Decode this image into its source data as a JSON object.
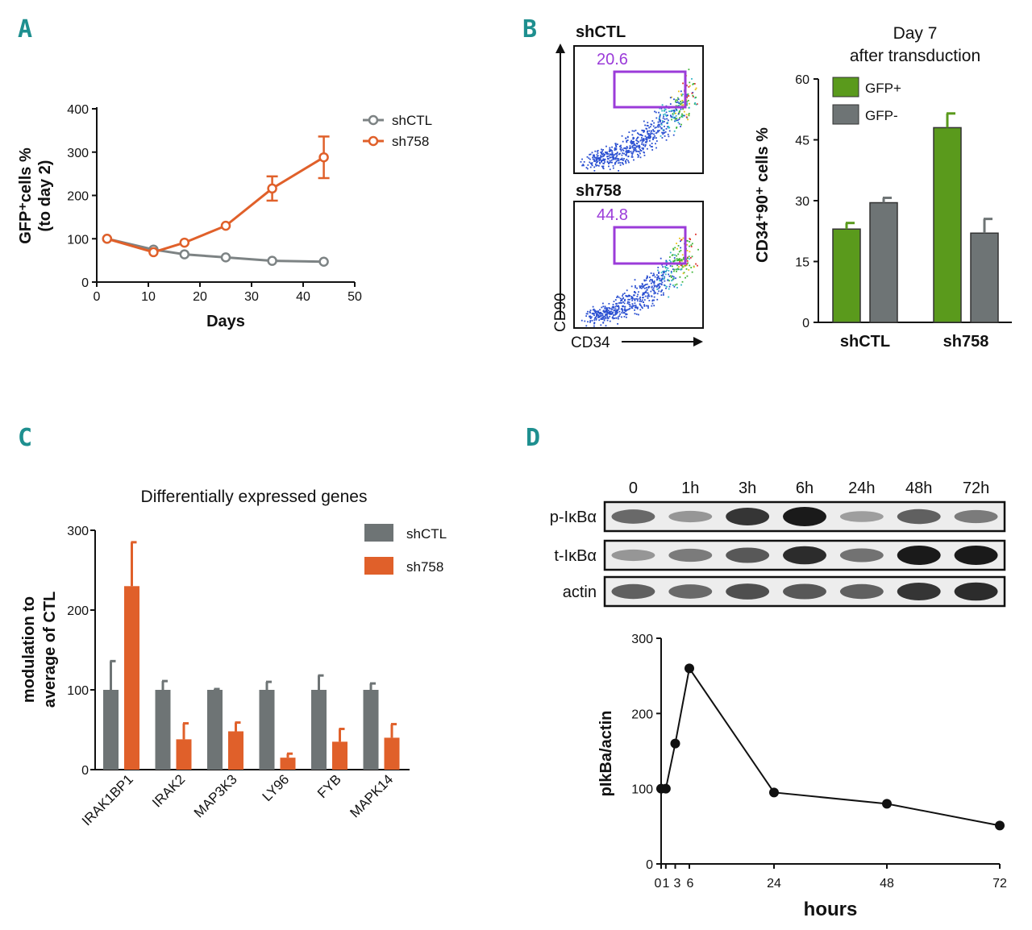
{
  "panels": {
    "A": "A",
    "B": "B",
    "C": "C",
    "D": "D"
  },
  "colors": {
    "teal": "#1e8f8f",
    "orange": "#e0602a",
    "gray": "#6e7475",
    "green": "#5a9a1c",
    "purple": "#9b3bd9"
  },
  "chart_data": [
    {
      "id": "A",
      "type": "line",
      "xlabel": "Days",
      "ylabel_line1": "GFP⁺cells %",
      "ylabel_line2": "(to day 2)",
      "xlim": [
        0,
        50
      ],
      "ylim": [
        0,
        400
      ],
      "xticks": [
        0,
        10,
        20,
        30,
        40,
        50
      ],
      "yticks": [
        0,
        100,
        200,
        300,
        400
      ],
      "series": [
        {
          "name": "shCTL",
          "color": "#7d8384",
          "x": [
            2,
            11,
            17,
            25,
            34,
            44
          ],
          "y": [
            100,
            75,
            64,
            57,
            49,
            47
          ],
          "err": [
            0,
            0,
            0,
            0,
            0,
            0
          ]
        },
        {
          "name": "sh758",
          "color": "#e0602a",
          "x": [
            2,
            11,
            17,
            25,
            34,
            44
          ],
          "y": [
            100,
            69,
            91,
            130,
            216,
            288
          ],
          "err": [
            0,
            0,
            0,
            0,
            28,
            48
          ]
        }
      ]
    },
    {
      "id": "B-flow",
      "type": "scatter",
      "xlabel": "CD34",
      "ylabel": "CD90",
      "plots": [
        {
          "label": "shCTL",
          "gate_value": "20.6"
        },
        {
          "label": "sh758",
          "gate_value": "44.8"
        }
      ]
    },
    {
      "id": "B",
      "type": "bar",
      "title_line1": "Day 7",
      "title_line2": "after transduction",
      "ylabel": "CD34⁺90⁺ cells %",
      "categories": [
        "shCTL",
        "sh758"
      ],
      "ylim": [
        0,
        60
      ],
      "yticks": [
        0,
        15,
        30,
        45,
        60
      ],
      "series": [
        {
          "name": "GFP+",
          "color": "#5a9a1c",
          "values": [
            23,
            48
          ],
          "err": [
            1.5,
            3.5
          ]
        },
        {
          "name": "GFP-",
          "color": "#6e7475",
          "values": [
            29.5,
            22
          ],
          "err": [
            1.2,
            3.5
          ]
        }
      ]
    },
    {
      "id": "C",
      "type": "bar",
      "title": "Differentially expressed genes",
      "ylabel_line1": "modulation to",
      "ylabel_line2": "average of CTL",
      "categories": [
        "IRAK1BP1",
        "IRAK2",
        "MAP3K3",
        "LY96",
        "FYB",
        "MAPK14"
      ],
      "ylim": [
        0,
        300
      ],
      "yticks": [
        0,
        100,
        200,
        300
      ],
      "series": [
        {
          "name": "shCTL",
          "color": "#6e7475",
          "values": [
            100,
            100,
            100,
            100,
            100,
            100
          ],
          "err": [
            36,
            11,
            1,
            10,
            18,
            8
          ]
        },
        {
          "name": "sh758",
          "color": "#e0602a",
          "values": [
            230,
            38,
            48,
            15,
            35,
            40
          ],
          "err": [
            55,
            20,
            11,
            5,
            16,
            17
          ]
        }
      ]
    },
    {
      "id": "D",
      "type": "line",
      "xlabel": "hours",
      "ylabel": "pIkBa/actin",
      "xlim": [
        0,
        72
      ],
      "ylim": [
        0,
        300
      ],
      "xticks": [
        0,
        1,
        3,
        6,
        24,
        48,
        72
      ],
      "yticks": [
        0,
        100,
        200,
        300
      ],
      "series": [
        {
          "name": "pIkBa/actin",
          "color": "#111111",
          "x": [
            0,
            1,
            3,
            6,
            24,
            48,
            72
          ],
          "y": [
            100,
            100,
            160,
            260,
            95,
            80,
            51
          ]
        }
      ]
    }
  ],
  "blot": {
    "timepoints": [
      "0",
      "1h",
      "3h",
      "6h",
      "24h",
      "48h",
      "72h"
    ],
    "rows": [
      {
        "label": "p-IκBα",
        "intensity": [
          0.55,
          0.3,
          0.85,
          1.0,
          0.25,
          0.6,
          0.45
        ]
      },
      {
        "label": "t-IκBα",
        "intensity": [
          0.3,
          0.45,
          0.65,
          0.9,
          0.5,
          1.0,
          1.0
        ]
      },
      {
        "label": "actin",
        "intensity": [
          0.6,
          0.55,
          0.7,
          0.65,
          0.6,
          0.85,
          0.9
        ]
      }
    ]
  }
}
